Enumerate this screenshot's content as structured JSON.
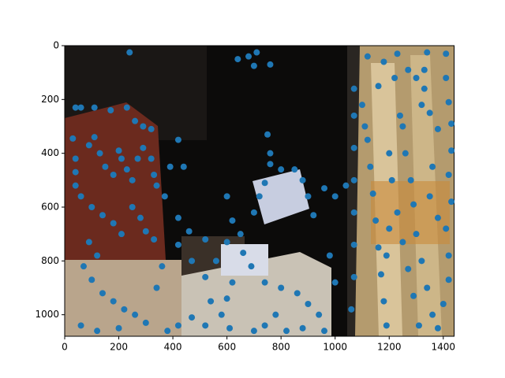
{
  "chart_data": {
    "type": "scatter",
    "color": "#1f77b4",
    "xlim": [
      0,
      1440
    ],
    "ylim": [
      1080,
      0
    ],
    "xticks": [
      0,
      200,
      400,
      600,
      800,
      1000,
      1200,
      1400
    ],
    "yticks": [
      0,
      200,
      400,
      600,
      800,
      1000
    ],
    "x": [
      240,
      640,
      680,
      700,
      710,
      760,
      1120,
      1230,
      1340,
      1410,
      1180,
      1270,
      1330,
      1410,
      1160,
      1300,
      30,
      40,
      60,
      110,
      170,
      230,
      260,
      290,
      320,
      40,
      40,
      40,
      60,
      90,
      110,
      130,
      150,
      180,
      200,
      210,
      230,
      250,
      270,
      290,
      320,
      330,
      340,
      100,
      140,
      180,
      210,
      250,
      280,
      300,
      330,
      90,
      120,
      70,
      100,
      140,
      180,
      220,
      260,
      300,
      60,
      120,
      200,
      340,
      360,
      370,
      390,
      440,
      420,
      420,
      460,
      420,
      470,
      520,
      540,
      580,
      600,
      610,
      520,
      470,
      420,
      380,
      600,
      620,
      650,
      700,
      720,
      740,
      750,
      760,
      760,
      800,
      850,
      880,
      900,
      920,
      960,
      1000,
      1040,
      690,
      740,
      800,
      860,
      900,
      940,
      780,
      740,
      700,
      820,
      880,
      960,
      1000,
      980,
      560,
      600,
      660,
      620,
      520,
      1070,
      1070,
      1070,
      1070,
      1070,
      1070,
      1070,
      1060,
      1100,
      1110,
      1120,
      1130,
      1140,
      1150,
      1160,
      1170,
      1180,
      1190,
      1220,
      1240,
      1250,
      1260,
      1280,
      1290,
      1300,
      1320,
      1340,
      1360,
      1380,
      1400,
      1420,
      1420,
      1410,
      1430,
      1420,
      1430,
      1430,
      1420,
      1380,
      1350,
      1320,
      1200,
      1210,
      1230,
      1250,
      1270,
      1290,
      1310,
      1350,
      1380,
      1360,
      1330,
      1200,
      1190
    ],
    "values": [
      25,
      50,
      40,
      75,
      25,
      70,
      40,
      30,
      25,
      30,
      60,
      90,
      90,
      120,
      150,
      120,
      345,
      230,
      230,
      230,
      240,
      230,
      280,
      300,
      310,
      420,
      470,
      520,
      560,
      370,
      340,
      400,
      450,
      480,
      390,
      420,
      460,
      500,
      420,
      380,
      420,
      480,
      520,
      600,
      630,
      660,
      700,
      600,
      640,
      690,
      720,
      730,
      780,
      820,
      870,
      920,
      950,
      980,
      1000,
      1030,
      1040,
      1060,
      1050,
      900,
      820,
      560,
      450,
      450,
      350,
      640,
      690,
      740,
      800,
      860,
      950,
      1000,
      940,
      1050,
      1040,
      1010,
      1040,
      1060,
      560,
      650,
      700,
      620,
      560,
      510,
      330,
      400,
      440,
      460,
      460,
      500,
      560,
      630,
      530,
      560,
      520,
      820,
      880,
      900,
      920,
      960,
      1000,
      1000,
      1040,
      1060,
      1060,
      1050,
      1060,
      880,
      780,
      800,
      730,
      770,
      880,
      720,
      160,
      260,
      380,
      500,
      620,
      740,
      860,
      980,
      220,
      300,
      350,
      450,
      550,
      650,
      750,
      850,
      950,
      1040,
      120,
      260,
      300,
      400,
      500,
      590,
      700,
      800,
      900,
      1000,
      1050,
      960,
      870,
      780,
      680,
      580,
      480,
      390,
      290,
      210,
      310,
      250,
      220,
      400,
      500,
      620,
      730,
      830,
      930,
      1040,
      560,
      640,
      450,
      160,
      680,
      780
    ]
  }
}
